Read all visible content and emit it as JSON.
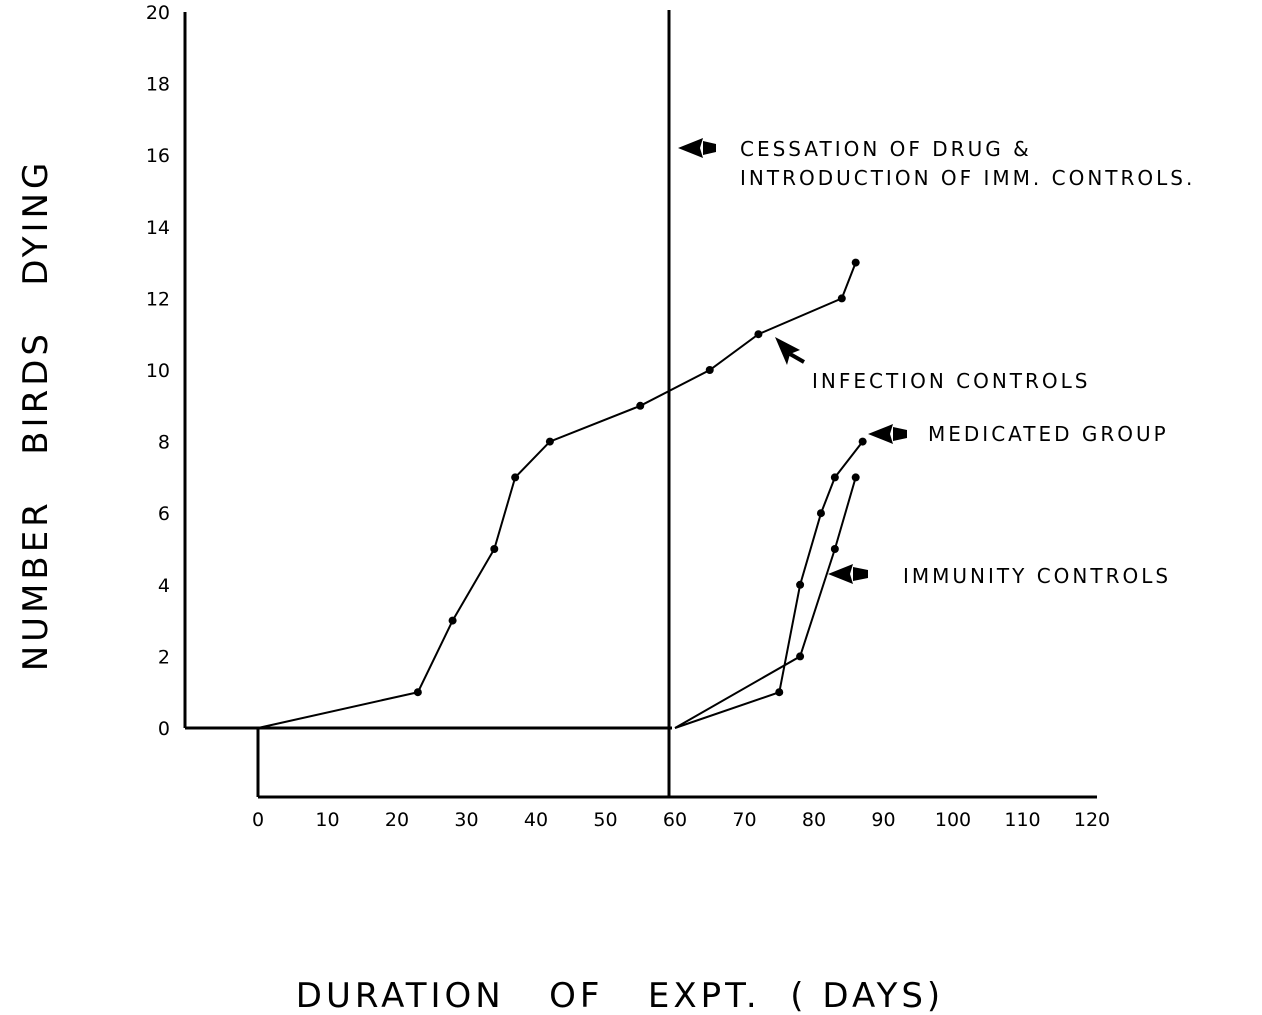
{
  "chart_data": {
    "type": "line",
    "title": "",
    "xlabel": "DURATION   OF   EXPT.  ( DAYS)",
    "ylabel": "NUMBER   BIRDS   DYING",
    "xlim": [
      0,
      120
    ],
    "ylim": [
      0,
      20
    ],
    "x_ticks": [
      "0",
      "10",
      "20",
      "30",
      "40",
      "50",
      "60",
      "70",
      "80",
      "90",
      "100",
      "110",
      "120"
    ],
    "y_ticks": [
      "0",
      "2",
      "4",
      "6",
      "8",
      "10",
      "12",
      "14",
      "16",
      "18",
      "20"
    ],
    "grid": false,
    "series": [
      {
        "name": "INFECTION  CONTROLS",
        "points": [
          [
            0,
            0
          ],
          [
            23,
            1
          ],
          [
            28,
            3
          ],
          [
            34,
            5
          ],
          [
            37,
            7
          ],
          [
            42,
            8
          ],
          [
            55,
            9
          ],
          [
            65,
            10
          ],
          [
            72,
            11
          ],
          [
            84,
            12
          ],
          [
            86,
            13
          ]
        ]
      },
      {
        "name": "MEDICATED  GROUP",
        "points": [
          [
            60,
            0
          ],
          [
            75,
            1
          ],
          [
            78,
            4
          ],
          [
            81,
            6
          ],
          [
            83,
            7
          ],
          [
            87,
            8
          ]
        ]
      },
      {
        "name": "IMMUNITY  CONTROLS",
        "points": [
          [
            60,
            0
          ],
          [
            78,
            2
          ],
          [
            83,
            5
          ],
          [
            86,
            7
          ]
        ]
      }
    ],
    "marker_line": {
      "x": 60,
      "label_line1": "CESSATION  OF  DRUG  &",
      "label_line2": "INTRODUCTION  OF  IMM. CONTROLS."
    }
  }
}
